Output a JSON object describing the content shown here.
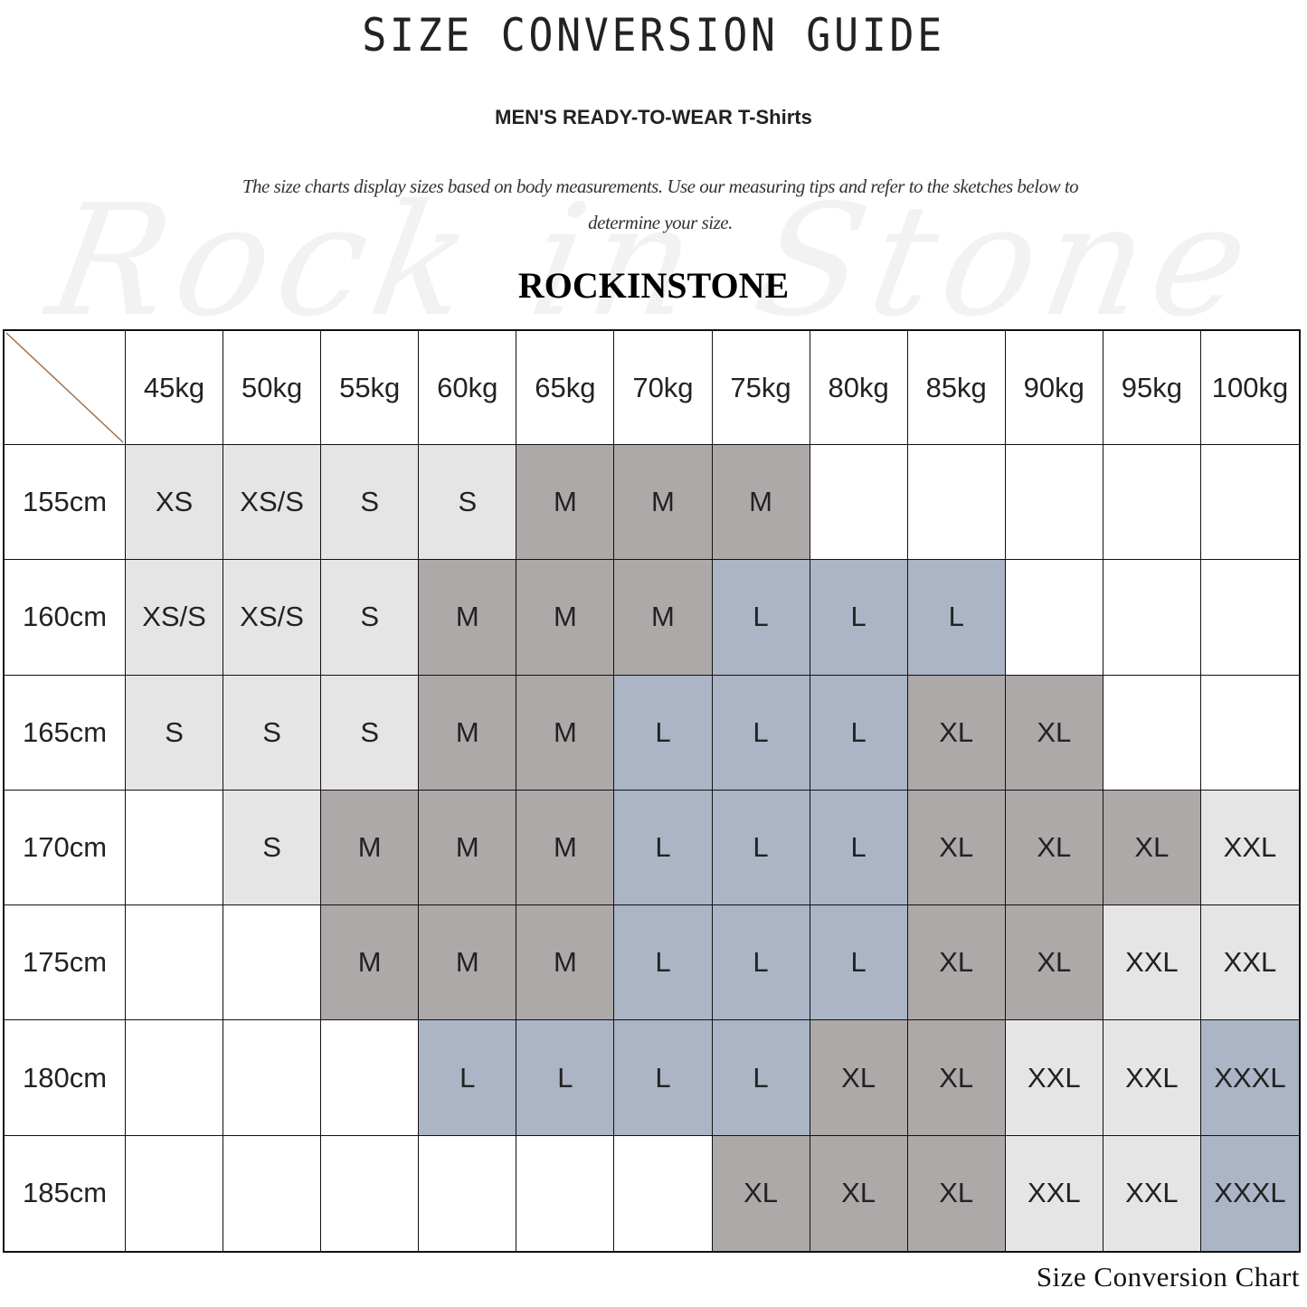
{
  "title": "SIZE CONVERSION GUIDE",
  "subtitle": "MEN'S READY-TO-WEAR T-Shirts",
  "description": "The size charts display sizes based on body measurements. Use our measuring tips and refer to the sketches below to determine your size.",
  "watermark": "Rock in Stone",
  "brand": "ROCKINSTONE",
  "caption": "Size Conversion Chart",
  "colors": {
    "light": "#e5e5e5",
    "gray": "#ada9a8",
    "blue": "#abb5c6",
    "empty": "#ffffff",
    "corner_line": "#a0704a"
  },
  "size_colors": {
    "XS": "light",
    "XS/S": "light",
    "S": "light",
    "M": "gray",
    "L": "blue",
    "XL": "gray",
    "XXL": "light",
    "XXXL": "blue"
  },
  "chart_data": {
    "type": "table",
    "columns": [
      "45kg",
      "50kg",
      "55kg",
      "60kg",
      "65kg",
      "70kg",
      "75kg",
      "80kg",
      "85kg",
      "90kg",
      "95kg",
      "100kg"
    ],
    "rows": [
      {
        "label": "155cm",
        "values": [
          "XS",
          "XS/S",
          "S",
          "S",
          "M",
          "M",
          "M",
          "",
          "",
          "",
          "",
          ""
        ]
      },
      {
        "label": "160cm",
        "values": [
          "XS/S",
          "XS/S",
          "S",
          "M",
          "M",
          "M",
          "L",
          "L",
          "L",
          "",
          "",
          ""
        ]
      },
      {
        "label": "165cm",
        "values": [
          "S",
          "S",
          "S",
          "M",
          "M",
          "L",
          "L",
          "L",
          "XL",
          "XL",
          "",
          ""
        ]
      },
      {
        "label": "170cm",
        "values": [
          "",
          "S",
          "M",
          "M",
          "M",
          "L",
          "L",
          "L",
          "XL",
          "XL",
          "XL",
          "XXL"
        ]
      },
      {
        "label": "175cm",
        "values": [
          "",
          "",
          "M",
          "M",
          "M",
          "L",
          "L",
          "L",
          "XL",
          "XL",
          "XXL",
          "XXL"
        ]
      },
      {
        "label": "180cm",
        "values": [
          "",
          "",
          "",
          "L",
          "L",
          "L",
          "L",
          "XL",
          "XL",
          "XXL",
          "XXL",
          "XXXL"
        ]
      },
      {
        "label": "185cm",
        "values": [
          "",
          "",
          "",
          "",
          "",
          "",
          "XL",
          "XL",
          "XL",
          "XXL",
          "XXL",
          "XXXL"
        ]
      }
    ]
  }
}
